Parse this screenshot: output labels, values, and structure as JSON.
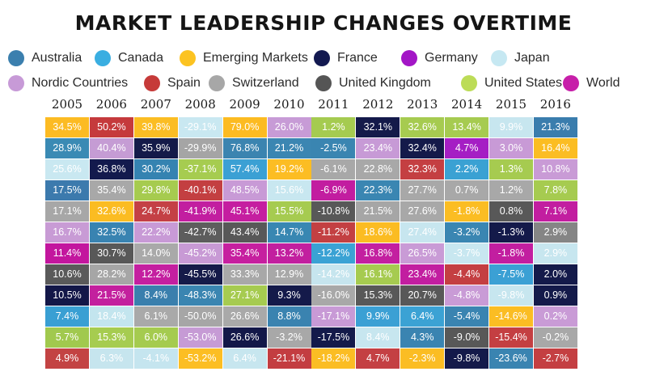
{
  "chart_data": {
    "type": "table",
    "title": "MARKET LEADERSHIP CHANGES OVERTIME",
    "legend": [
      {
        "name": "Australia",
        "color": "#3b7fae"
      },
      {
        "name": "Canada",
        "color": "#3aaee1"
      },
      {
        "name": "Emerging Markets",
        "color": "#fcc321"
      },
      {
        "name": "France",
        "color": "#131950"
      },
      {
        "name": "Germany",
        "color": "#a316c6"
      },
      {
        "name": "Japan",
        "color": "#c6e8f2"
      },
      {
        "name": "Nordic Countries",
        "color": "#c79ad7"
      },
      {
        "name": "Spain",
        "color": "#c63a39"
      },
      {
        "name": "Switzerland",
        "color": "#a7a7a7"
      },
      {
        "name": "United Kingdom",
        "color": "#555555"
      },
      {
        "name": "United States",
        "color": "#bcdc57"
      },
      {
        "name": "World",
        "color": "#c71fa9"
      }
    ],
    "years": [
      "2005",
      "2006",
      "2007",
      "2008",
      "2009",
      "2010",
      "2011",
      "2012",
      "2013",
      "2014",
      "2015",
      "2016"
    ],
    "columns": [
      {
        "year": "2005",
        "cells": [
          {
            "value": "34.5%",
            "color": "#fcbb23"
          },
          {
            "value": "28.9%",
            "color": "#3a8ab4"
          },
          {
            "value": "25.6%",
            "color": "#c9e8f1"
          },
          {
            "value": "17.5%",
            "color": "#3c7aad"
          },
          {
            "value": "17.1%",
            "color": "#a7a7a7"
          },
          {
            "value": "16.7%",
            "color": "#c89bd5"
          },
          {
            "value": "11.4%",
            "color": "#c3169e"
          },
          {
            "value": "10.6%",
            "color": "#5a5a5a"
          },
          {
            "value": "10.5%",
            "color": "#131748"
          },
          {
            "value": "7.4%",
            "color": "#399fd3"
          },
          {
            "value": "5.7%",
            "color": "#a1c94e"
          },
          {
            "value": "4.9%",
            "color": "#c34343"
          }
        ]
      },
      {
        "year": "2006",
        "cells": [
          {
            "value": "50.2%",
            "color": "#c53a3c"
          },
          {
            "value": "40.4%",
            "color": "#c59cd4"
          },
          {
            "value": "36.8%",
            "color": "#131a4d"
          },
          {
            "value": "35.4%",
            "color": "#a8a8a8"
          },
          {
            "value": "32.6%",
            "color": "#fbbc22"
          },
          {
            "value": "32.5%",
            "color": "#3983b1"
          },
          {
            "value": "30.7%",
            "color": "#585858"
          },
          {
            "value": "28.2%",
            "color": "#a6a6a6"
          },
          {
            "value": "21.5%",
            "color": "#c3209e"
          },
          {
            "value": "18.4%",
            "color": "#c3e5ee"
          },
          {
            "value": "15.3%",
            "color": "#a6cc50"
          },
          {
            "value": "6.3%",
            "color": "#c6e5ee"
          }
        ]
      },
      {
        "year": "2007",
        "cells": [
          {
            "value": "39.8%",
            "color": "#fbbd23"
          },
          {
            "value": "35.9%",
            "color": "#141a49"
          },
          {
            "value": "30.2%",
            "color": "#3583b1"
          },
          {
            "value": "29.8%",
            "color": "#a6cb4f"
          },
          {
            "value": "24.7%",
            "color": "#c44045"
          },
          {
            "value": "22.2%",
            "color": "#c89ad6"
          },
          {
            "value": "14.0%",
            "color": "#a9a9a9"
          },
          {
            "value": "12.2%",
            "color": "#c41fa0"
          },
          {
            "value": "8.4%",
            "color": "#3a7fad"
          },
          {
            "value": "6.1%",
            "color": "#a9a9a9"
          },
          {
            "value": "6.0%",
            "color": "#a5cb4f"
          },
          {
            "value": "-4.1%",
            "color": "#c5e5ef"
          }
        ]
      },
      {
        "year": "2008",
        "cells": [
          {
            "value": "-29.1%",
            "color": "#c9e8f1"
          },
          {
            "value": "-29.9%",
            "color": "#a5a5a5"
          },
          {
            "value": "-37.1%",
            "color": "#a6cc50"
          },
          {
            "value": "-40.1%",
            "color": "#c33f41"
          },
          {
            "value": "-41.9%",
            "color": "#c21ea0"
          },
          {
            "value": "-42.7%",
            "color": "#5d5d5d"
          },
          {
            "value": "-45.2%",
            "color": "#c89ad5"
          },
          {
            "value": "-45.5%",
            "color": "#151a49"
          },
          {
            "value": "-48.3%",
            "color": "#3a85b1"
          },
          {
            "value": "-50.0%",
            "color": "#a6a6a6"
          },
          {
            "value": "-53.0%",
            "color": "#c69bd5"
          },
          {
            "value": "-53.2%",
            "color": "#fcbe23"
          }
        ]
      },
      {
        "year": "2009",
        "cells": [
          {
            "value": "79.0%",
            "color": "#fcbb21"
          },
          {
            "value": "76.8%",
            "color": "#3b84b0"
          },
          {
            "value": "57.4%",
            "color": "#3ba0d4"
          },
          {
            "value": "48.5%",
            "color": "#c89ad6"
          },
          {
            "value": "45.1%",
            "color": "#c51ea0"
          },
          {
            "value": "43.4%",
            "color": "#585858"
          },
          {
            "value": "35.4%",
            "color": "#c61f9f"
          },
          {
            "value": "33.3%",
            "color": "#a8a8a8"
          },
          {
            "value": "27.1%",
            "color": "#a6cb50"
          },
          {
            "value": "26.6%",
            "color": "#a9a9a9"
          },
          {
            "value": "26.6%",
            "color": "#131849"
          },
          {
            "value": "6.4%",
            "color": "#c7e6ef"
          }
        ]
      },
      {
        "year": "2010",
        "cells": [
          {
            "value": "26.0%",
            "color": "#c79bd6"
          },
          {
            "value": "21.2%",
            "color": "#3b86b2"
          },
          {
            "value": "19.2%",
            "color": "#fcbd23"
          },
          {
            "value": "15.6%",
            "color": "#c8e7f0"
          },
          {
            "value": "15.5%",
            "color": "#a6cb50"
          },
          {
            "value": "14.7%",
            "color": "#3887b2"
          },
          {
            "value": "13.2%",
            "color": "#c21f9f"
          },
          {
            "value": "12.9%",
            "color": "#a8a8a8"
          },
          {
            "value": "9.3%",
            "color": "#141a4a"
          },
          {
            "value": "8.8%",
            "color": "#3a83b0"
          },
          {
            "value": "-3.2%",
            "color": "#a8a8a8"
          },
          {
            "value": "-21.1%",
            "color": "#c33d41"
          }
        ]
      },
      {
        "year": "2011",
        "cells": [
          {
            "value": "1.2%",
            "color": "#a5cb50"
          },
          {
            "value": "-2.5%",
            "color": "#3a85b1"
          },
          {
            "value": "-6.1%",
            "color": "#a8a8a8"
          },
          {
            "value": "-6.9%",
            "color": "#c21da0"
          },
          {
            "value": "-10.8%",
            "color": "#585858"
          },
          {
            "value": "-11.2%",
            "color": "#c34042"
          },
          {
            "value": "-12.2%",
            "color": "#3aa2d4"
          },
          {
            "value": "-14.2%",
            "color": "#c6e5ee"
          },
          {
            "value": "-16.0%",
            "color": "#a8a8a8"
          },
          {
            "value": "-17.1%",
            "color": "#c89ad6"
          },
          {
            "value": "-17.5%",
            "color": "#141a4a"
          },
          {
            "value": "-18.2%",
            "color": "#fbbd23"
          }
        ]
      },
      {
        "year": "2012",
        "cells": [
          {
            "value": "32.1%",
            "color": "#141a4a"
          },
          {
            "value": "23.4%",
            "color": "#c79ad6"
          },
          {
            "value": "22.8%",
            "color": "#a8a8a8"
          },
          {
            "value": "22.3%",
            "color": "#3a86b2"
          },
          {
            "value": "21.5%",
            "color": "#a6a6a6"
          },
          {
            "value": "18.6%",
            "color": "#fbbc22"
          },
          {
            "value": "16.8%",
            "color": "#c31fa0"
          },
          {
            "value": "16.1%",
            "color": "#a6cb50"
          },
          {
            "value": "15.3%",
            "color": "#585858"
          },
          {
            "value": "9.9%",
            "color": "#3ba0d4"
          },
          {
            "value": "8.4%",
            "color": "#c7e6ef"
          },
          {
            "value": "4.7%",
            "color": "#c44043"
          }
        ]
      },
      {
        "year": "2013",
        "cells": [
          {
            "value": "32.6%",
            "color": "#a6cb50"
          },
          {
            "value": "32.4%",
            "color": "#141a4a"
          },
          {
            "value": "32.3%",
            "color": "#c43f42"
          },
          {
            "value": "27.7%",
            "color": "#a8a8a8"
          },
          {
            "value": "27.6%",
            "color": "#a8a8a8"
          },
          {
            "value": "27.4%",
            "color": "#c7e6ef"
          },
          {
            "value": "26.5%",
            "color": "#c99bd6"
          },
          {
            "value": "23.4%",
            "color": "#c21ea0"
          },
          {
            "value": "20.7%",
            "color": "#585858"
          },
          {
            "value": "6.4%",
            "color": "#3ba2d4"
          },
          {
            "value": "4.3%",
            "color": "#3a84b1"
          },
          {
            "value": "-2.3%",
            "color": "#fbbd23"
          }
        ]
      },
      {
        "year": "2014",
        "cells": [
          {
            "value": "13.4%",
            "color": "#a6cb50"
          },
          {
            "value": "4.7%",
            "color": "#a51ec4"
          },
          {
            "value": "2.2%",
            "color": "#3aa1d3"
          },
          {
            "value": "0.7%",
            "color": "#a8a8a8"
          },
          {
            "value": "-1.8%",
            "color": "#fbbd23"
          },
          {
            "value": "-3.2%",
            "color": "#3a86b2"
          },
          {
            "value": "-3.7%",
            "color": "#c8e7f0"
          },
          {
            "value": "-4.4%",
            "color": "#c43f42"
          },
          {
            "value": "-4.8%",
            "color": "#c99bd6"
          },
          {
            "value": "-5.4%",
            "color": "#3a84b1"
          },
          {
            "value": "-9.0%",
            "color": "#585858"
          },
          {
            "value": "-9.8%",
            "color": "#141a4a"
          }
        ]
      },
      {
        "year": "2015",
        "cells": [
          {
            "value": "9.9%",
            "color": "#c7e6ef"
          },
          {
            "value": "3.0%",
            "color": "#c89ad6"
          },
          {
            "value": "1.3%",
            "color": "#a6cb50"
          },
          {
            "value": "1.2%",
            "color": "#a8a8a8"
          },
          {
            "value": "0.8%",
            "color": "#585858"
          },
          {
            "value": "-1.3%",
            "color": "#141a4a"
          },
          {
            "value": "-1.8%",
            "color": "#c21ea0"
          },
          {
            "value": "-7.5%",
            "color": "#3ba0d4"
          },
          {
            "value": "-9.8%",
            "color": "#c7e6ef"
          },
          {
            "value": "-14.6%",
            "color": "#fbbd23"
          },
          {
            "value": "-15.4%",
            "color": "#c43f42"
          },
          {
            "value": "-23.6%",
            "color": "#3a84b1"
          }
        ]
      },
      {
        "year": "2016",
        "cells": [
          {
            "value": "21.3%",
            "color": "#3a7dad"
          },
          {
            "value": "16.4%",
            "color": "#fbbd23"
          },
          {
            "value": "10.8%",
            "color": "#c99bd6"
          },
          {
            "value": "7.8%",
            "color": "#a6cb50"
          },
          {
            "value": "7.1%",
            "color": "#c21ea0"
          },
          {
            "value": "2.9%",
            "color": "#858585"
          },
          {
            "value": "2.9%",
            "color": "#c7e6ef"
          },
          {
            "value": "2.0%",
            "color": "#141a4a"
          },
          {
            "value": "0.9%",
            "color": "#141a4a"
          },
          {
            "value": "0.2%",
            "color": "#c99bd6"
          },
          {
            "value": "-0.2%",
            "color": "#a8a8a8"
          },
          {
            "value": "-2.7%",
            "color": "#c43f42"
          }
        ]
      }
    ]
  }
}
